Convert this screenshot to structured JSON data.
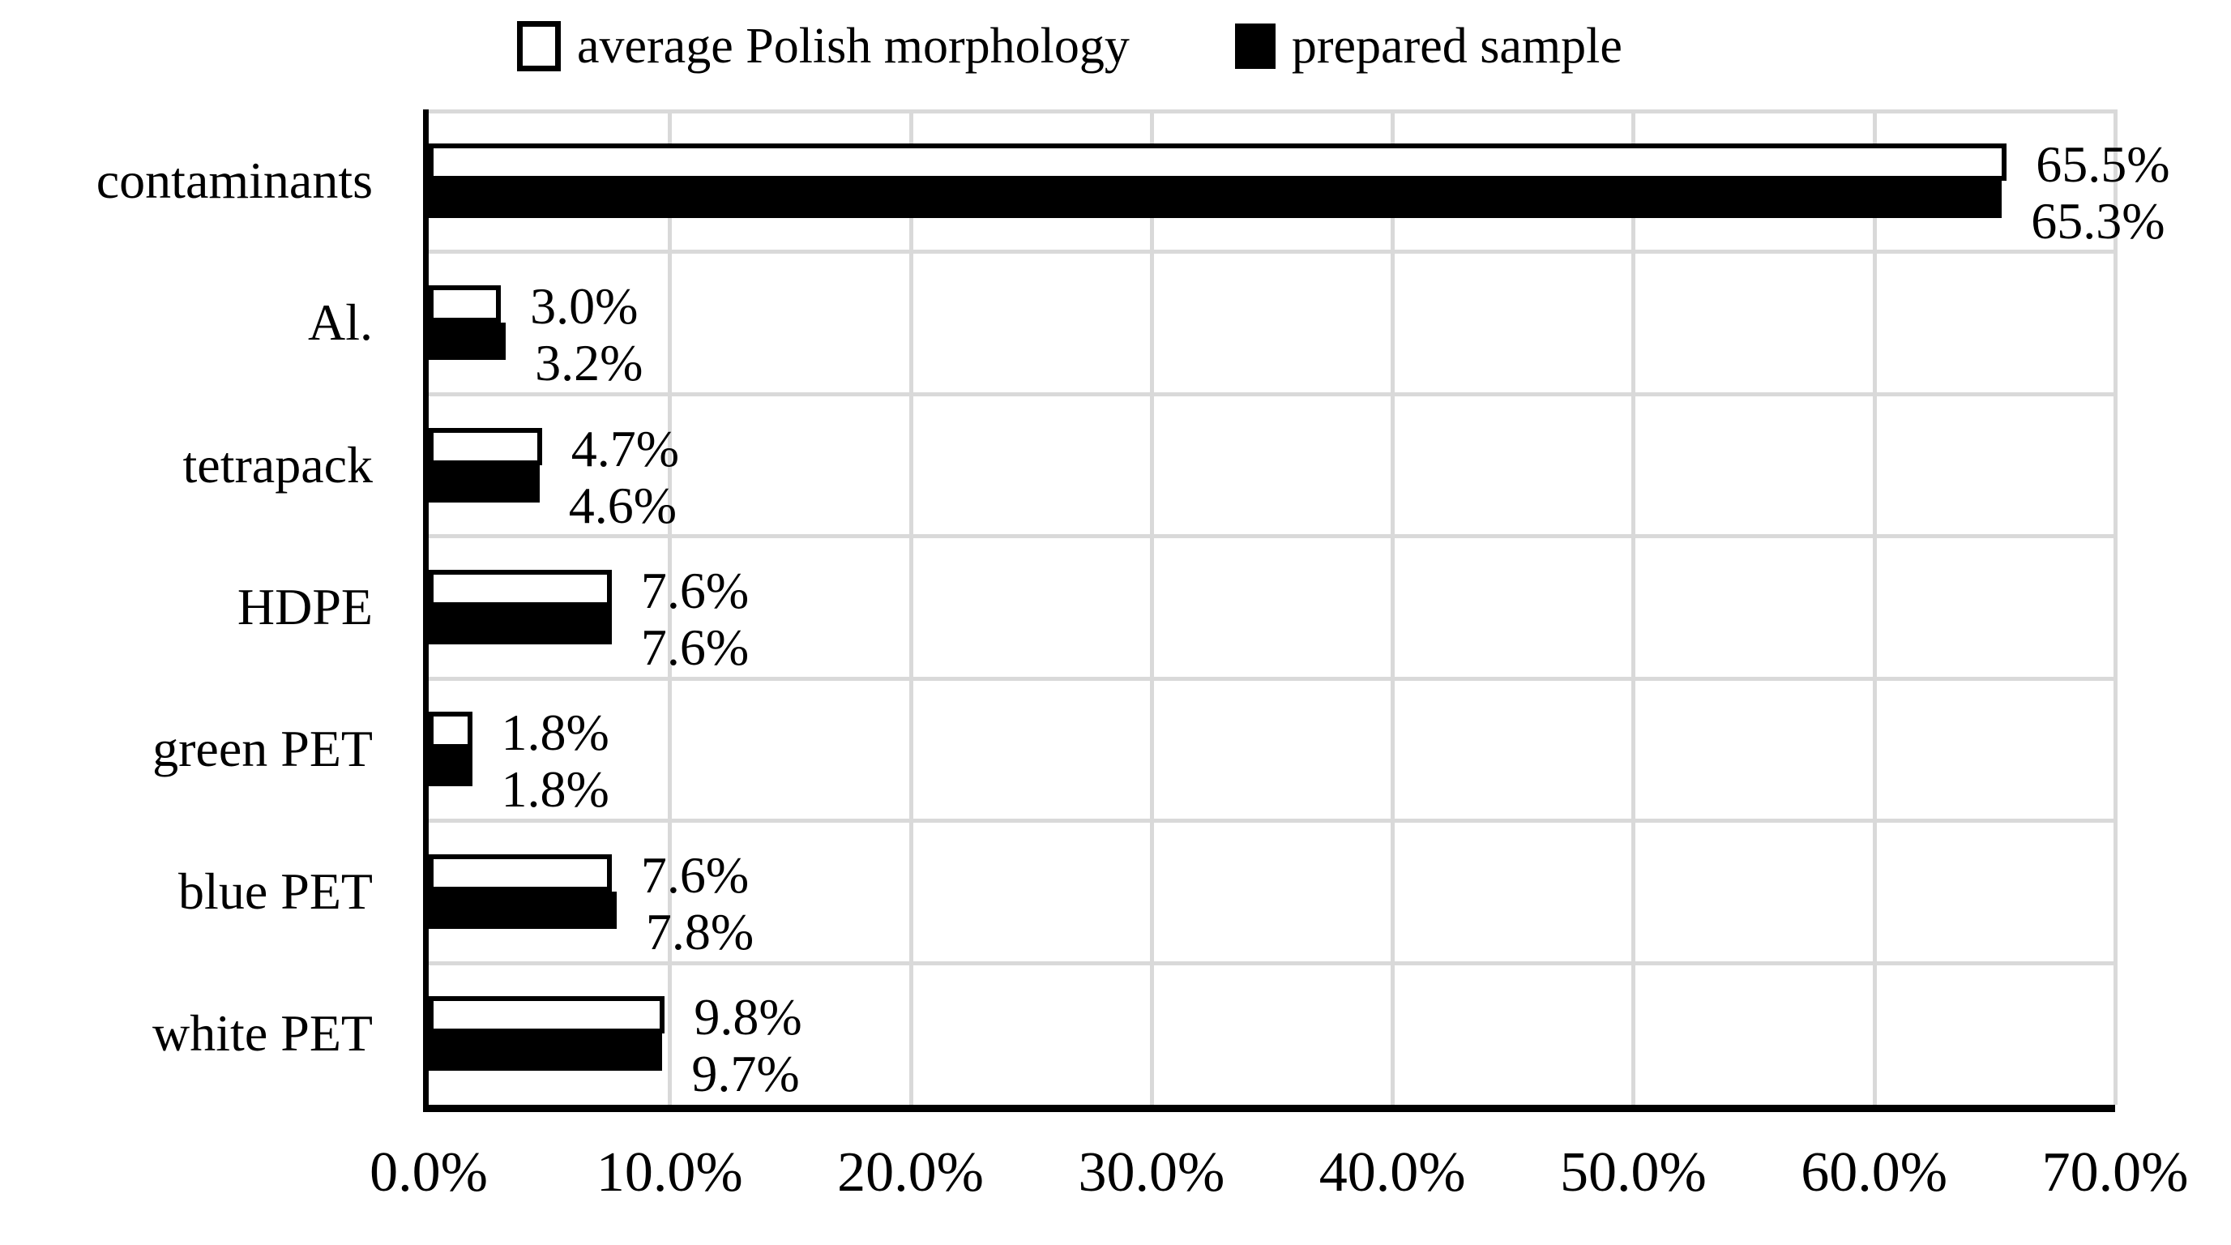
{
  "chart_data": {
    "type": "bar",
    "orientation": "horizontal",
    "categories": [
      "contaminants",
      "Al.",
      "tetrapack",
      "HDPE",
      "green PET",
      "blue PET",
      "white PET"
    ],
    "series": [
      {
        "name": "average Polish morphology",
        "marker": "open-square",
        "fill": "#ffffff",
        "border": "#000000",
        "values": [
          65.5,
          3.0,
          4.7,
          7.6,
          1.8,
          7.6,
          9.8
        ],
        "labels": [
          "65.5%",
          "3.0%",
          "4.7%",
          "7.6%",
          "1.8%",
          "7.6%",
          "9.8%"
        ]
      },
      {
        "name": "prepared sample",
        "marker": "filled-square",
        "fill": "#000000",
        "border": "#000000",
        "values": [
          65.3,
          3.2,
          4.6,
          7.6,
          1.8,
          7.8,
          9.7
        ],
        "labels": [
          "65.3%",
          "3.2%",
          "4.6%",
          "7.6%",
          "1.8%",
          "7.8%",
          "9.7%"
        ]
      }
    ],
    "x_axis": {
      "min": 0,
      "max": 70,
      "tick_step": 10,
      "ticks": [
        "0.0%",
        "10.0%",
        "20.0%",
        "30.0%",
        "40.0%",
        "50.0%",
        "60.0%",
        "70.0%"
      ]
    },
    "legend_position": "top",
    "grid": true,
    "data_labels": "outside-end",
    "colors": {
      "gridline": "#d9d9d9",
      "axis": "#000000",
      "text": "#000000",
      "background": "#ffffff"
    }
  }
}
